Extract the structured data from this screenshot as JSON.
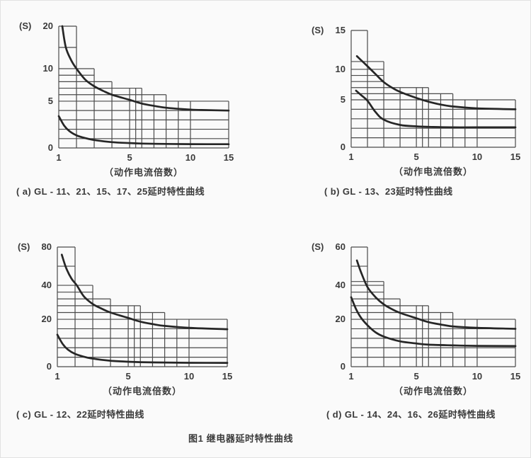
{
  "page": {
    "background": "#fafafa",
    "border_color": "#e2e2e2",
    "grid_color": "#4a4a4a",
    "curve_color": "#262626",
    "text_color": "#3a3a3a",
    "figure_caption": "图1  继电器延时特性曲线"
  },
  "chart_data": [
    {
      "id": "a",
      "type": "line",
      "caption": "( a) GL - 11、21、15、17、25延时特性曲线",
      "y_unit": "(S)",
      "x_label": "（动作电流倍数）",
      "x_range": [
        1,
        15
      ],
      "y_range": [
        0,
        20
      ],
      "x_ticks": [
        {
          "v": 1,
          "f": 0
        },
        {
          "v": 5,
          "f": 0.417
        },
        {
          "v": 10,
          "f": 0.775
        },
        {
          "v": 15,
          "f": 1
        }
      ],
      "y_ticks": [
        {
          "v": 0,
          "f": 0
        },
        {
          "v": 5,
          "f": 0.384
        },
        {
          "v": 10,
          "f": 0.651
        },
        {
          "v": 20,
          "f": 1
        }
      ],
      "grid_h": [
        {
          "y": 20,
          "x_end": 2
        },
        {
          "y": 15,
          "x_end": 2
        },
        {
          "y": 10,
          "x_end": 3
        },
        {
          "y": 9,
          "x_end": 3
        },
        {
          "y": 8,
          "x_end": 4
        },
        {
          "y": 7,
          "x_end": 6
        },
        {
          "y": 6,
          "x_end": 8
        },
        {
          "y": 5,
          "x_end": 15
        },
        {
          "y": 4,
          "x_end": 15
        },
        {
          "y": 3,
          "x_end": 15
        },
        {
          "y": 2,
          "x_end": 15
        },
        {
          "y": 1,
          "x_end": 15
        },
        {
          "y": 0,
          "x_end": 15
        }
      ],
      "grid_v": [
        {
          "x": 1,
          "y_top": 20
        },
        {
          "x": 2,
          "y_top": 20
        },
        {
          "x": 3,
          "y_top": 10
        },
        {
          "x": 4,
          "y_top": 8
        },
        {
          "x": 5,
          "y_top": 7
        },
        {
          "x": 5.5,
          "y_top": 7
        },
        {
          "x": 6,
          "y_top": 7
        },
        {
          "x": 7,
          "y_top": 6
        },
        {
          "x": 8,
          "y_top": 6
        },
        {
          "x": 9,
          "y_top": 5
        },
        {
          "x": 10,
          "y_top": 5
        },
        {
          "x": 15,
          "y_top": 5
        }
      ],
      "step_envelope": [
        [
          1,
          2,
          20
        ],
        [
          2,
          3,
          10
        ],
        [
          3,
          4,
          8
        ],
        [
          4,
          6,
          7
        ],
        [
          6,
          8,
          6
        ],
        [
          8,
          15,
          5
        ]
      ],
      "series": [
        {
          "name": "upper limit",
          "points": [
            [
              1.2,
              20
            ],
            [
              1.4,
              15
            ],
            [
              1.7,
              12
            ],
            [
              2,
              10
            ],
            [
              2.5,
              8.3
            ],
            [
              3,
              7.3
            ],
            [
              3.5,
              6.6
            ],
            [
              4,
              6.0
            ],
            [
              5,
              5.2
            ],
            [
              6,
              4.75
            ],
            [
              7,
              4.5
            ],
            [
              8,
              4.3
            ],
            [
              10,
              4.1
            ],
            [
              12,
              4.05
            ],
            [
              15,
              4.0
            ]
          ]
        },
        {
          "name": "lower limit",
          "points": [
            [
              1,
              3.4
            ],
            [
              1.3,
              2.4
            ],
            [
              1.6,
              1.8
            ],
            [
              2,
              1.35
            ],
            [
              2.5,
              1.05
            ],
            [
              3,
              0.85
            ],
            [
              4,
              0.62
            ],
            [
              5,
              0.52
            ],
            [
              6,
              0.47
            ],
            [
              8,
              0.43
            ],
            [
              10,
              0.41
            ],
            [
              15,
              0.4
            ]
          ]
        }
      ]
    },
    {
      "id": "b",
      "type": "line",
      "caption": "( b) GL - 13、23延时特性曲线",
      "y_unit": "(S)",
      "x_label": "（动作电流倍数）",
      "x_range": [
        1,
        15
      ],
      "y_range": [
        0,
        15
      ],
      "x_ticks": [
        {
          "v": 1,
          "f": 0
        },
        {
          "v": 5,
          "f": 0.397
        },
        {
          "v": 10,
          "f": 0.767
        },
        {
          "v": 15,
          "f": 1
        }
      ],
      "y_ticks": [
        {
          "v": 0,
          "f": 0
        },
        {
          "v": 5,
          "f": 0.406
        },
        {
          "v": 10,
          "f": 0.667
        },
        {
          "v": 15,
          "f": 1
        }
      ],
      "grid_h": [
        {
          "y": 15,
          "x_end": 2
        },
        {
          "y": 11,
          "x_end": 3
        },
        {
          "y": 10,
          "x_end": 3
        },
        {
          "y": 9,
          "x_end": 3
        },
        {
          "y": 8,
          "x_end": 3
        },
        {
          "y": 7,
          "x_end": 6
        },
        {
          "y": 6,
          "x_end": 8
        },
        {
          "y": 5,
          "x_end": 15
        },
        {
          "y": 4,
          "x_end": 15
        },
        {
          "y": 3,
          "x_end": 15
        },
        {
          "y": 2,
          "x_end": 15
        },
        {
          "y": 1,
          "x_end": 15
        },
        {
          "y": 0,
          "x_end": 15
        }
      ],
      "grid_v": [
        {
          "x": 1,
          "y_top": 15
        },
        {
          "x": 2,
          "y_top": 15
        },
        {
          "x": 3,
          "y_top": 11
        },
        {
          "x": 4,
          "y_top": 7
        },
        {
          "x": 5,
          "y_top": 7
        },
        {
          "x": 5.5,
          "y_top": 7
        },
        {
          "x": 6,
          "y_top": 7
        },
        {
          "x": 7,
          "y_top": 6
        },
        {
          "x": 8,
          "y_top": 6
        },
        {
          "x": 9,
          "y_top": 5
        },
        {
          "x": 10,
          "y_top": 5
        },
        {
          "x": 15,
          "y_top": 5
        }
      ],
      "step_envelope": [
        [
          1,
          2,
          15
        ],
        [
          2,
          3,
          11
        ],
        [
          3,
          6,
          7
        ],
        [
          6,
          8,
          6
        ],
        [
          8,
          15,
          5
        ]
      ],
      "series": [
        {
          "name": "upper limit",
          "points": [
            [
              1.35,
              11.7
            ],
            [
              1.6,
              11.2
            ],
            [
              2,
              10.4
            ],
            [
              2.5,
              9.2
            ],
            [
              3,
              7.9
            ],
            [
              3.5,
              7.0
            ],
            [
              4,
              6.3
            ],
            [
              5,
              5.3
            ],
            [
              6,
              4.8
            ],
            [
              7,
              4.5
            ],
            [
              8,
              4.3
            ],
            [
              10,
              4.1
            ],
            [
              15,
              4.0
            ]
          ]
        },
        {
          "name": "lower limit",
          "points": [
            [
              1.3,
              6.5
            ],
            [
              1.6,
              5.8
            ],
            [
              2,
              4.9
            ],
            [
              2.5,
              3.7
            ],
            [
              3,
              2.9
            ],
            [
              4,
              2.35
            ],
            [
              5,
              2.2
            ],
            [
              6,
              2.15
            ],
            [
              8,
              2.1
            ],
            [
              10,
              2.1
            ],
            [
              15,
              2.1
            ]
          ]
        }
      ]
    },
    {
      "id": "c",
      "type": "line",
      "caption": "( c) GL - 12、22延时特性曲线",
      "y_unit": "(S)",
      "x_label": "（动作电流倍数）",
      "x_range": [
        1,
        15
      ],
      "y_range": [
        0,
        80
      ],
      "x_ticks": [
        {
          "v": 1,
          "f": 0
        },
        {
          "v": 5,
          "f": 0.417
        },
        {
          "v": 10,
          "f": 0.775
        },
        {
          "v": 15,
          "f": 1
        }
      ],
      "y_ticks": [
        {
          "v": 0,
          "f": 0
        },
        {
          "v": 20,
          "f": 0.396
        },
        {
          "v": 40,
          "f": 0.68
        },
        {
          "v": 80,
          "f": 1
        }
      ],
      "grid_h": [
        {
          "y": 80,
          "x_end": 2
        },
        {
          "y": 60,
          "x_end": 2
        },
        {
          "y": 40,
          "x_end": 3
        },
        {
          "y": 36,
          "x_end": 3
        },
        {
          "y": 32,
          "x_end": 4
        },
        {
          "y": 28,
          "x_end": 6
        },
        {
          "y": 24,
          "x_end": 8
        },
        {
          "y": 20,
          "x_end": 15
        },
        {
          "y": 16,
          "x_end": 15
        },
        {
          "y": 12,
          "x_end": 15
        },
        {
          "y": 8,
          "x_end": 15
        },
        {
          "y": 4,
          "x_end": 15
        },
        {
          "y": 0,
          "x_end": 15
        }
      ],
      "grid_v": [
        {
          "x": 1,
          "y_top": 80
        },
        {
          "x": 2,
          "y_top": 80
        },
        {
          "x": 3,
          "y_top": 40
        },
        {
          "x": 4,
          "y_top": 32
        },
        {
          "x": 5,
          "y_top": 28
        },
        {
          "x": 5.5,
          "y_top": 28
        },
        {
          "x": 6,
          "y_top": 28
        },
        {
          "x": 7,
          "y_top": 24
        },
        {
          "x": 8,
          "y_top": 24
        },
        {
          "x": 9,
          "y_top": 20
        },
        {
          "x": 10,
          "y_top": 20
        },
        {
          "x": 15,
          "y_top": 20
        }
      ],
      "step_envelope": [
        [
          1,
          2,
          80
        ],
        [
          2,
          3,
          40
        ],
        [
          3,
          4,
          32
        ],
        [
          4,
          6,
          28
        ],
        [
          6,
          8,
          24
        ],
        [
          8,
          15,
          20
        ]
      ],
      "series": [
        {
          "name": "upper limit",
          "points": [
            [
              1.25,
              72
            ],
            [
              1.5,
              58
            ],
            [
              1.8,
              47
            ],
            [
              2.1,
              40
            ],
            [
              2.5,
              33.5
            ],
            [
              3,
              29
            ],
            [
              3.5,
              26.3
            ],
            [
              4,
              24
            ],
            [
              5,
              20.8
            ],
            [
              6,
              19
            ],
            [
              7,
              18
            ],
            [
              8,
              17.2
            ],
            [
              10,
              16.4
            ],
            [
              15,
              15.8
            ]
          ]
        },
        {
          "name": "lower limit",
          "points": [
            [
              1,
              13.5
            ],
            [
              1.3,
              9.6
            ],
            [
              1.6,
              7.2
            ],
            [
              2,
              5.4
            ],
            [
              2.5,
              4.2
            ],
            [
              3,
              3.4
            ],
            [
              4,
              2.5
            ],
            [
              5,
              2.1
            ],
            [
              6,
              1.9
            ],
            [
              8,
              1.75
            ],
            [
              10,
              1.65
            ],
            [
              15,
              1.6
            ]
          ]
        }
      ]
    },
    {
      "id": "d",
      "type": "line",
      "caption": "( d) GL - 14、24、16、26延时特性曲线",
      "y_unit": "(S)",
      "x_label": "（动作电流倍数）",
      "x_range": [
        1,
        15
      ],
      "y_range": [
        0,
        60
      ],
      "x_ticks": [
        {
          "v": 1,
          "f": 0
        },
        {
          "v": 5,
          "f": 0.397
        },
        {
          "v": 10,
          "f": 0.767
        },
        {
          "v": 15,
          "f": 1
        }
      ],
      "y_ticks": [
        {
          "v": 0,
          "f": 0
        },
        {
          "v": 20,
          "f": 0.396
        },
        {
          "v": 40,
          "f": 0.68
        },
        {
          "v": 60,
          "f": 1
        }
      ],
      "grid_h": [
        {
          "y": 60,
          "x_end": 2
        },
        {
          "y": 50,
          "x_end": 2
        },
        {
          "y": 42,
          "x_end": 3
        },
        {
          "y": 40,
          "x_end": 3
        },
        {
          "y": 36,
          "x_end": 3
        },
        {
          "y": 32,
          "x_end": 4
        },
        {
          "y": 28,
          "x_end": 6
        },
        {
          "y": 24,
          "x_end": 8
        },
        {
          "y": 20,
          "x_end": 15
        },
        {
          "y": 16,
          "x_end": 15
        },
        {
          "y": 12,
          "x_end": 15
        },
        {
          "y": 8,
          "x_end": 15
        },
        {
          "y": 4,
          "x_end": 15
        },
        {
          "y": 0,
          "x_end": 15
        }
      ],
      "grid_v": [
        {
          "x": 1,
          "y_top": 60
        },
        {
          "x": 2,
          "y_top": 60
        },
        {
          "x": 3,
          "y_top": 42
        },
        {
          "x": 4,
          "y_top": 32
        },
        {
          "x": 5,
          "y_top": 28
        },
        {
          "x": 5.5,
          "y_top": 28
        },
        {
          "x": 6,
          "y_top": 28
        },
        {
          "x": 7,
          "y_top": 24
        },
        {
          "x": 8,
          "y_top": 24
        },
        {
          "x": 9,
          "y_top": 20
        },
        {
          "x": 10,
          "y_top": 20
        },
        {
          "x": 15,
          "y_top": 20
        }
      ],
      "step_envelope": [
        [
          1,
          2,
          60
        ],
        [
          2,
          3,
          42
        ],
        [
          3,
          4,
          32
        ],
        [
          4,
          6,
          28
        ],
        [
          6,
          8,
          24
        ],
        [
          8,
          15,
          20
        ]
      ],
      "series": [
        {
          "name": "upper limit",
          "points": [
            [
              1.35,
              53
            ],
            [
              1.6,
              47
            ],
            [
              2,
              39
            ],
            [
              2.5,
              33
            ],
            [
              3,
              28.8
            ],
            [
              3.5,
              26
            ],
            [
              4,
              23.8
            ],
            [
              5,
              20.6
            ],
            [
              6,
              18.8
            ],
            [
              7,
              17.8
            ],
            [
              8,
              17
            ],
            [
              10,
              16.4
            ],
            [
              15,
              16
            ]
          ]
        },
        {
          "name": "lower limit",
          "points": [
            [
              1,
              33
            ],
            [
              1.3,
              26
            ],
            [
              1.6,
              21
            ],
            [
              2,
              17.5
            ],
            [
              2.5,
              14.5
            ],
            [
              3,
              12.7
            ],
            [
              4,
              10.7
            ],
            [
              5,
              9.8
            ],
            [
              6,
              9.3
            ],
            [
              8,
              9.0
            ],
            [
              10,
              8.8
            ],
            [
              15,
              8.7
            ]
          ]
        }
      ]
    }
  ]
}
